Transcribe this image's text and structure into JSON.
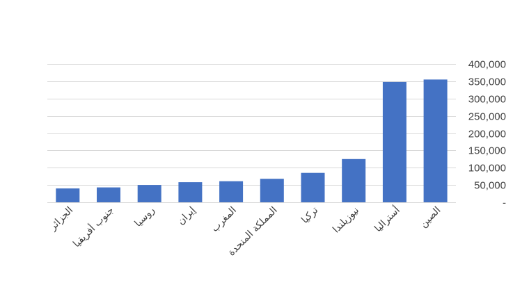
{
  "chart_data": {
    "type": "bar",
    "title": "",
    "xlabel": "",
    "ylabel": "",
    "categories": [
      "الجزائر",
      "جنوب أفريقيا",
      "روسيا",
      "إيران",
      "المغرب",
      "المملكة المتحدة",
      "تركيا",
      "نيوزيلندا",
      "أستراليا",
      "الصين"
    ],
    "values": [
      40000,
      43000,
      50000,
      58000,
      61000,
      68000,
      85000,
      125000,
      348000,
      355000
    ],
    "ylim": [
      0,
      400000
    ],
    "yticks": [
      0,
      50000,
      100000,
      150000,
      200000,
      250000,
      300000,
      350000,
      400000
    ],
    "ytick_labels": [
      "-",
      "50,000",
      "100,000",
      "150,000",
      "200,000",
      "250,000",
      "300,000",
      "350,000",
      "400,000"
    ],
    "y_axis_side": "right",
    "grid": true,
    "legend": "none",
    "bar_color": "#4472c4",
    "grid_color": "#d9d9d9"
  }
}
